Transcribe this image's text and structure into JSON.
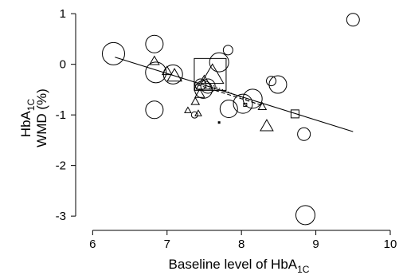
{
  "chart_data": {
    "type": "scatter",
    "xlabel": "Baseline level of HbA",
    "xlabel_sub": "1C",
    "ylabel_line1_main": "HbA",
    "ylabel_line1_sub": "1C",
    "ylabel_line2": "WMD (%)",
    "xlim": [
      5.9,
      10.0
    ],
    "ylim": [
      -3.25,
      1.05
    ],
    "x_ticks": [
      6,
      7,
      8,
      9,
      10
    ],
    "y_ticks": [
      1,
      0,
      -1,
      -2,
      -3
    ],
    "grid": false,
    "legend": "none",
    "circles": [
      {
        "x": 6.28,
        "y": 0.21,
        "size": 14
      },
      {
        "x": 6.83,
        "y": 0.4,
        "size": 11
      },
      {
        "x": 6.85,
        "y": -0.16,
        "size": 13
      },
      {
        "x": 6.83,
        "y": -0.9,
        "size": 11
      },
      {
        "x": 7.08,
        "y": -0.2,
        "size": 12
      },
      {
        "x": 7.45,
        "y": -0.4,
        "size": 7
      },
      {
        "x": 7.49,
        "y": -0.5,
        "size": 11
      },
      {
        "x": 7.55,
        "y": -0.43,
        "size": 9
      },
      {
        "x": 7.7,
        "y": 0.04,
        "size": 12
      },
      {
        "x": 7.82,
        "y": 0.28,
        "size": 6
      },
      {
        "x": 7.83,
        "y": -0.88,
        "size": 11
      },
      {
        "x": 8.02,
        "y": -0.78,
        "size": 12
      },
      {
        "x": 8.15,
        "y": -0.68,
        "size": 12
      },
      {
        "x": 8.4,
        "y": -0.33,
        "size": 6
      },
      {
        "x": 8.49,
        "y": -0.4,
        "size": 11
      },
      {
        "x": 8.84,
        "y": -1.38,
        "size": 8
      },
      {
        "x": 8.86,
        "y": -2.98,
        "size": 12
      },
      {
        "x": 9.5,
        "y": 0.88,
        "size": 8
      },
      {
        "x": 7.37,
        "y": -1.0,
        "size": 4
      }
    ],
    "triangles": [
      {
        "x": 6.83,
        "y": 0.05,
        "size": 6
      },
      {
        "x": 7.0,
        "y": -0.15,
        "size": 6
      },
      {
        "x": 7.1,
        "y": -0.25,
        "size": 9
      },
      {
        "x": 7.28,
        "y": -0.92,
        "size": 4
      },
      {
        "x": 7.38,
        "y": -0.75,
        "size": 5
      },
      {
        "x": 7.42,
        "y": -0.98,
        "size": 4
      },
      {
        "x": 7.44,
        "y": -0.6,
        "size": 6
      },
      {
        "x": 7.5,
        "y": -0.4,
        "size": 10
      },
      {
        "x": 7.61,
        "y": -0.25,
        "size": 14
      },
      {
        "x": 8.28,
        "y": -0.85,
        "size": 5
      },
      {
        "x": 8.34,
        "y": -1.24,
        "size": 8
      }
    ],
    "squares": [
      {
        "x": 7.58,
        "y": -0.2,
        "size": 20
      },
      {
        "x": 8.05,
        "y": -0.8,
        "size": 2
      },
      {
        "x": 8.72,
        "y": -0.98,
        "size": 5
      },
      {
        "x": 7.7,
        "y": -1.15,
        "size": 1
      }
    ],
    "regression_solid": {
      "x": [
        6.3,
        9.5
      ],
      "y": [
        0.14,
        -1.33
      ]
    },
    "regression_dashed": {
      "x": [
        7.4,
        8.3
      ],
      "y": [
        -0.4,
        -0.82
      ]
    },
    "regression_dotted": {
      "x": [
        7.5,
        8.2
      ],
      "y": [
        -0.35,
        -0.78
      ]
    }
  }
}
